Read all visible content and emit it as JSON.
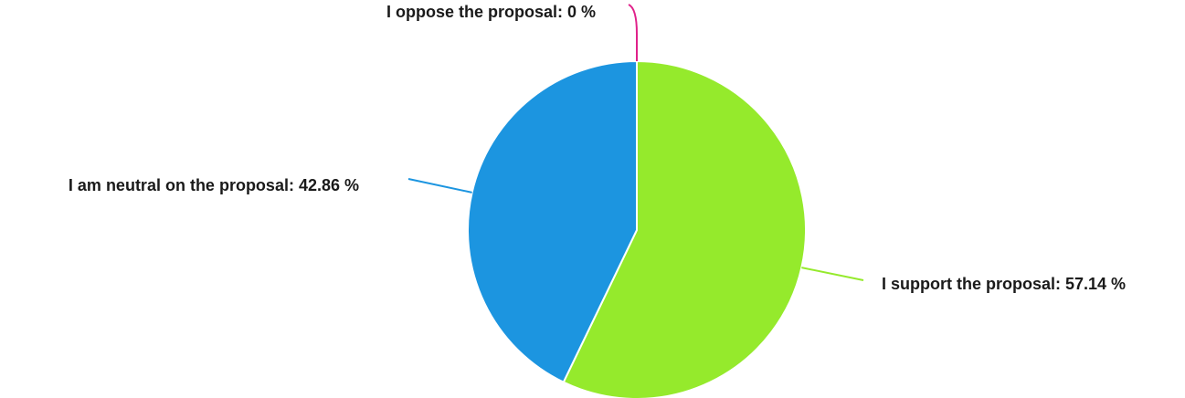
{
  "chart_data": {
    "type": "pie",
    "slices": [
      {
        "label": "I support the proposal",
        "value": 57.14,
        "display": "I support the proposal: 57.14 %",
        "color": "#95ea2c"
      },
      {
        "label": "I am neutral on the proposal",
        "value": 42.86,
        "display": "I am neutral on the proposal: 42.86 %",
        "color": "#1c95e0"
      },
      {
        "label": "I oppose the proposal",
        "value": 0,
        "display": "I oppose the proposal: 0 %",
        "color": "#e0218a"
      }
    ],
    "start_angle": "12 o'clock",
    "direction": "clockwise",
    "legend": "none"
  }
}
